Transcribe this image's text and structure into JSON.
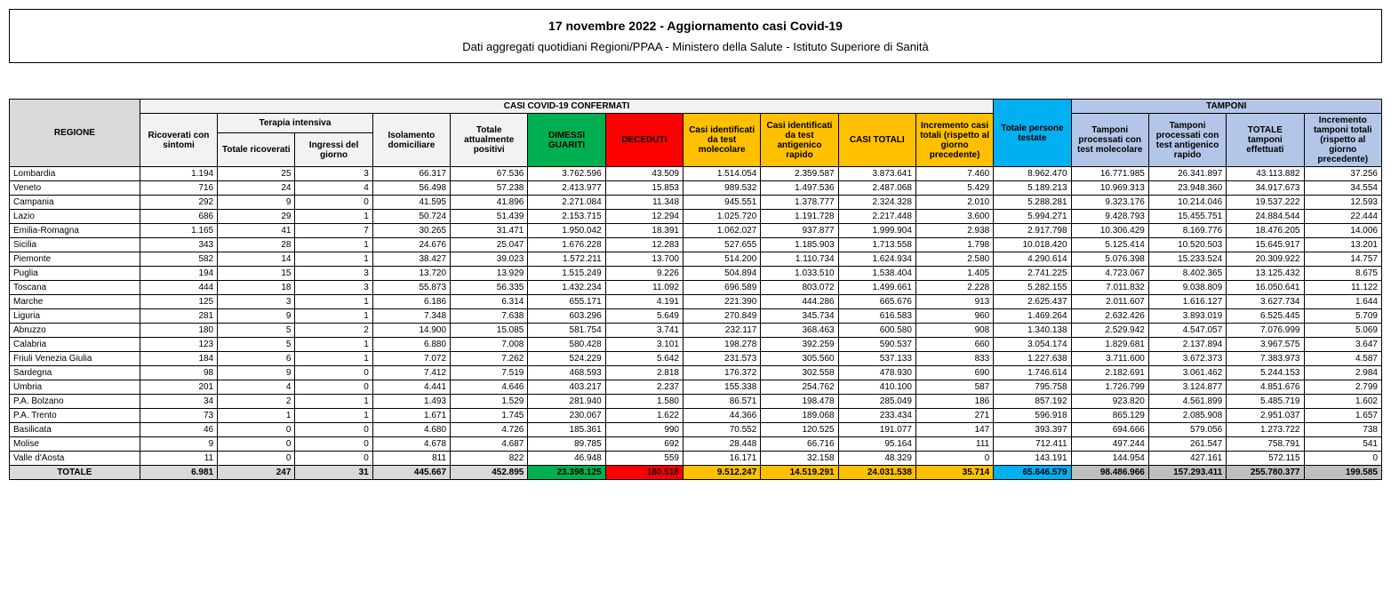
{
  "title": {
    "line1": "17 novembre 2022 - Aggiornamento casi Covid-19",
    "line2": "Dati aggregati quotidiani Regioni/PPAA - Ministero della Salute - Istituto Superiore di Sanità"
  },
  "headers": {
    "regione": "REGIONE",
    "casi_confermati": "CASI COVID-19 CONFERMATI",
    "ricoverati_sintomi": "Ricoverati con sintomi",
    "terapia_intensiva": "Terapia intensiva",
    "totale_ricoverati": "Totale ricoverati",
    "ingressi_giorno": "Ingressi del giorno",
    "isolamento_domiciliare": "Isolamento domiciliare",
    "totale_positivi": "Totale attualmente positivi",
    "dimessi_guariti": "DIMESSI GUARITI",
    "deceduti": "DECEDUTI",
    "casi_molecolare": "Casi identificati da test molecolare",
    "casi_antigenico": "Casi identificati da test antigenico rapido",
    "casi_totali": "CASI TOTALI",
    "incremento_casi": "Incremento casi totali (rispetto al giorno precedente)",
    "persone_testate": "Totale persone testate",
    "tamponi": "TAMPONI",
    "tamponi_molecolare": "Tamponi processati con test molecolare",
    "tamponi_antigenico": "Tamponi processati con test antigenico rapido",
    "totale_tamponi": "TOTALE tamponi effettuati",
    "incremento_tamponi": "Incremento tamponi totali (rispetto al giorno precedente)",
    "totale_label": "TOTALE"
  },
  "colors": {
    "gray": "#d9d9d9",
    "lightgray": "#f2f2f2",
    "green": "#00b050",
    "red": "#ff0000",
    "orange": "#ffc000",
    "blue": "#00b0f0",
    "lightblue": "#b4c6e7"
  },
  "rows": [
    {
      "region": "Lombardia",
      "v": [
        "1.194",
        "25",
        "3",
        "66.317",
        "67.536",
        "3.762.596",
        "43.509",
        "1.514.054",
        "2.359.587",
        "3.873.641",
        "7.460",
        "8.962.470",
        "16.771.985",
        "26.341.897",
        "43.113.882",
        "37.256"
      ]
    },
    {
      "region": "Veneto",
      "v": [
        "716",
        "24",
        "4",
        "56.498",
        "57.238",
        "2.413.977",
        "15.853",
        "989.532",
        "1.497.536",
        "2.487.068",
        "5.429",
        "5.189.213",
        "10.969.313",
        "23.948.360",
        "34.917.673",
        "34.554"
      ]
    },
    {
      "region": "Campania",
      "v": [
        "292",
        "9",
        "0",
        "41.595",
        "41.896",
        "2.271.084",
        "11.348",
        "945.551",
        "1.378.777",
        "2.324.328",
        "2.010",
        "5.288.281",
        "9.323.176",
        "10.214.046",
        "19.537.222",
        "12.593"
      ]
    },
    {
      "region": "Lazio",
      "v": [
        "686",
        "29",
        "1",
        "50.724",
        "51.439",
        "2.153.715",
        "12.294",
        "1.025.720",
        "1.191.728",
        "2.217.448",
        "3.600",
        "5.994.271",
        "9.428.793",
        "15.455.751",
        "24.884.544",
        "22.444"
      ]
    },
    {
      "region": "Emilia-Romagna",
      "v": [
        "1.165",
        "41",
        "7",
        "30.265",
        "31.471",
        "1.950.042",
        "18.391",
        "1.062.027",
        "937.877",
        "1.999.904",
        "2.938",
        "2.917.798",
        "10.306.429",
        "8.169.776",
        "18.476.205",
        "14.006"
      ]
    },
    {
      "region": "Sicilia",
      "v": [
        "343",
        "28",
        "1",
        "24.676",
        "25.047",
        "1.676.228",
        "12.283",
        "527.655",
        "1.185.903",
        "1.713.558",
        "1.798",
        "10.018.420",
        "5.125.414",
        "10.520.503",
        "15.645.917",
        "13.201"
      ]
    },
    {
      "region": "Piemonte",
      "v": [
        "582",
        "14",
        "1",
        "38.427",
        "39.023",
        "1.572.211",
        "13.700",
        "514.200",
        "1.110.734",
        "1.624.934",
        "2.580",
        "4.290.614",
        "5.076.398",
        "15.233.524",
        "20.309.922",
        "14.757"
      ]
    },
    {
      "region": "Puglia",
      "v": [
        "194",
        "15",
        "3",
        "13.720",
        "13.929",
        "1.515.249",
        "9.226",
        "504.894",
        "1.033.510",
        "1.538.404",
        "1.405",
        "2.741.225",
        "4.723.067",
        "8.402.365",
        "13.125.432",
        "8.675"
      ]
    },
    {
      "region": "Toscana",
      "v": [
        "444",
        "18",
        "3",
        "55.873",
        "56.335",
        "1.432.234",
        "11.092",
        "696.589",
        "803.072",
        "1.499.661",
        "2.228",
        "5.282.155",
        "7.011.832",
        "9.038.809",
        "16.050.641",
        "11.122"
      ]
    },
    {
      "region": "Marche",
      "v": [
        "125",
        "3",
        "1",
        "6.186",
        "6.314",
        "655.171",
        "4.191",
        "221.390",
        "444.286",
        "665.676",
        "913",
        "2.625.437",
        "2.011.607",
        "1.616.127",
        "3.627.734",
        "1.644"
      ]
    },
    {
      "region": "Liguria",
      "v": [
        "281",
        "9",
        "1",
        "7.348",
        "7.638",
        "603.296",
        "5.649",
        "270.849",
        "345.734",
        "616.583",
        "960",
        "1.469.264",
        "2.632.426",
        "3.893.019",
        "6.525.445",
        "5.709"
      ]
    },
    {
      "region": "Abruzzo",
      "v": [
        "180",
        "5",
        "2",
        "14.900",
        "15.085",
        "581.754",
        "3.741",
        "232.117",
        "368.463",
        "600.580",
        "908",
        "1.340.138",
        "2.529.942",
        "4.547.057",
        "7.076.999",
        "5.069"
      ]
    },
    {
      "region": "Calabria",
      "v": [
        "123",
        "5",
        "1",
        "6.880",
        "7.008",
        "580.428",
        "3.101",
        "198.278",
        "392.259",
        "590.537",
        "660",
        "3.054.174",
        "1.829.681",
        "2.137.894",
        "3.967.575",
        "3.647"
      ]
    },
    {
      "region": "Friuli Venezia Giulia",
      "v": [
        "184",
        "6",
        "1",
        "7.072",
        "7.262",
        "524.229",
        "5.642",
        "231.573",
        "305.560",
        "537.133",
        "833",
        "1.227.638",
        "3.711.600",
        "3.672.373",
        "7.383.973",
        "4.587"
      ]
    },
    {
      "region": "Sardegna",
      "v": [
        "98",
        "9",
        "0",
        "7.412",
        "7.519",
        "468.593",
        "2.818",
        "176.372",
        "302.558",
        "478.930",
        "690",
        "1.746.614",
        "2.182.691",
        "3.061.462",
        "5.244.153",
        "2.984"
      ]
    },
    {
      "region": "Umbria",
      "v": [
        "201",
        "4",
        "0",
        "4.441",
        "4.646",
        "403.217",
        "2.237",
        "155.338",
        "254.762",
        "410.100",
        "587",
        "795.758",
        "1.726.799",
        "3.124.877",
        "4.851.676",
        "2.799"
      ]
    },
    {
      "region": "P.A. Bolzano",
      "v": [
        "34",
        "2",
        "1",
        "1.493",
        "1.529",
        "281.940",
        "1.580",
        "86.571",
        "198.478",
        "285.049",
        "186",
        "857.192",
        "923.820",
        "4.561.899",
        "5.485.719",
        "1.602"
      ]
    },
    {
      "region": "P.A. Trento",
      "v": [
        "73",
        "1",
        "1",
        "1.671",
        "1.745",
        "230.067",
        "1.622",
        "44.366",
        "189.068",
        "233.434",
        "271",
        "596.918",
        "865.129",
        "2.085.908",
        "2.951.037",
        "1.657"
      ]
    },
    {
      "region": "Basilicata",
      "v": [
        "46",
        "0",
        "0",
        "4.680",
        "4.726",
        "185.361",
        "990",
        "70.552",
        "120.525",
        "191.077",
        "147",
        "393.397",
        "694.666",
        "579.056",
        "1.273.722",
        "738"
      ]
    },
    {
      "region": "Molise",
      "v": [
        "9",
        "0",
        "0",
        "4.678",
        "4.687",
        "89.785",
        "692",
        "28.448",
        "66.716",
        "95.164",
        "111",
        "712.411",
        "497.244",
        "261.547",
        "758.791",
        "541"
      ]
    },
    {
      "region": "Valle d'Aosta",
      "v": [
        "11",
        "0",
        "0",
        "811",
        "822",
        "46.948",
        "559",
        "16.171",
        "32.158",
        "48.329",
        "0",
        "143.191",
        "144.954",
        "427.161",
        "572.115",
        "0"
      ]
    }
  ],
  "totals": {
    "region": "TOTALE",
    "v": [
      "6.981",
      "247",
      "31",
      "445.667",
      "452.895",
      "23.398.125",
      "180.518",
      "9.512.247",
      "14.519.291",
      "24.031.538",
      "35.714",
      "65.646.579",
      "98.486.966",
      "157.293.411",
      "255.780.377",
      "199.585"
    ]
  }
}
